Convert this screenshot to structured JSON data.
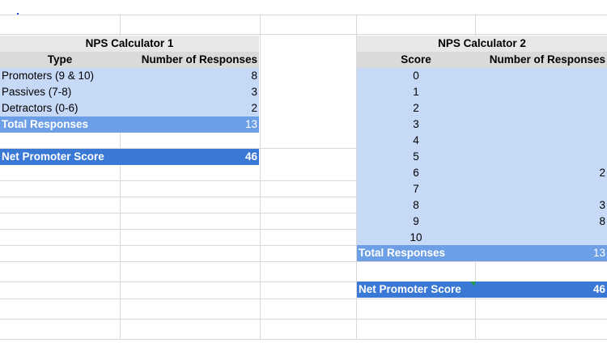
{
  "calc1": {
    "title": "NPS Calculator 1",
    "header_type": "Type",
    "header_responses": "Number of Responses",
    "rows": [
      {
        "label": "Promoters (9 & 10)",
        "value": "8"
      },
      {
        "label": "Passives (7-8)",
        "value": "3"
      },
      {
        "label": "Detractors (0-6)",
        "value": "2"
      }
    ],
    "total_label": "Total Responses",
    "total_value": "13",
    "nps_label": "Net Promoter Score",
    "nps_value": "46"
  },
  "calc2": {
    "title": "NPS Calculator 2",
    "header_score": "Score",
    "header_responses": "Number of Responses",
    "rows": [
      {
        "score": "0",
        "value": ""
      },
      {
        "score": "1",
        "value": ""
      },
      {
        "score": "2",
        "value": ""
      },
      {
        "score": "3",
        "value": ""
      },
      {
        "score": "4",
        "value": ""
      },
      {
        "score": "5",
        "value": ""
      },
      {
        "score": "6",
        "value": "2"
      },
      {
        "score": "7",
        "value": ""
      },
      {
        "score": "8",
        "value": "3"
      },
      {
        "score": "9",
        "value": "8"
      },
      {
        "score": "10",
        "value": ""
      }
    ],
    "total_label": "Total Responses",
    "total_value": "13",
    "nps_label": "Net Promoter Score",
    "nps_value": "46"
  },
  "colors": {
    "header_grey": "#e8e8e8",
    "light_blue": "#c6d9f7",
    "mid_blue": "#6d9fe6",
    "dark_blue": "#3a78d6",
    "comment_flag": "#1e9e3e"
  }
}
